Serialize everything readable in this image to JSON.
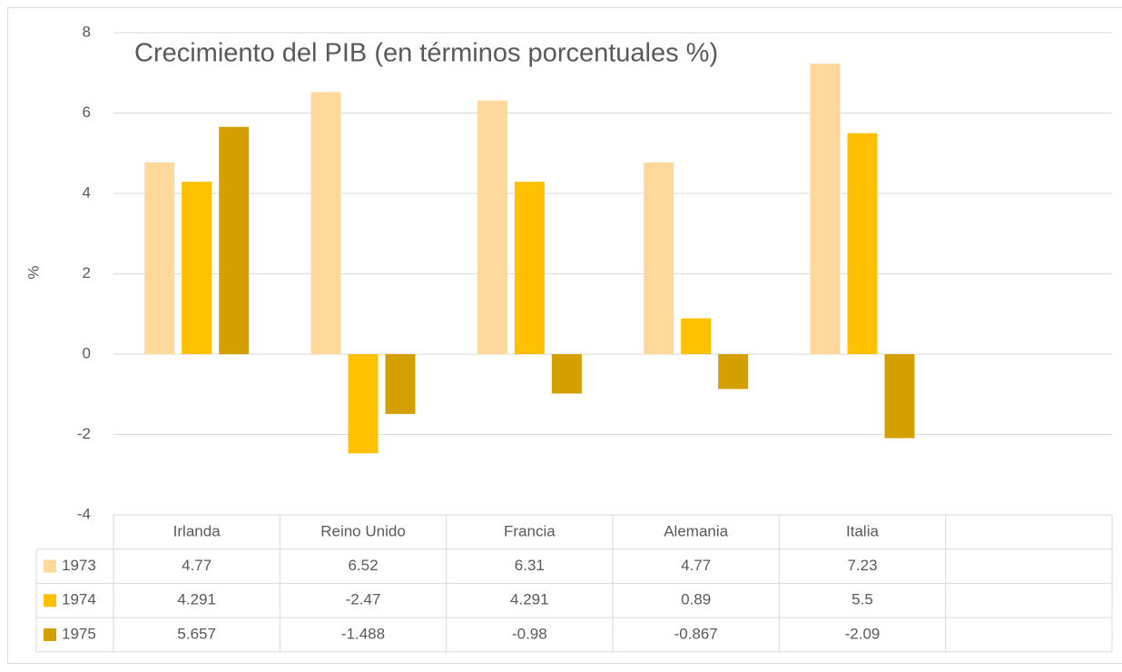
{
  "chart_data": {
    "type": "bar",
    "title": "Crecimiento del PIB (en términos porcentuales %)",
    "y_label": "%",
    "categories": [
      "Irlanda",
      "Reino Unido",
      "Francia",
      "Alemania",
      "Italia",
      null
    ],
    "series": [
      {
        "name": "1973",
        "color": "#ffd99c",
        "values": [
          4.77,
          6.52,
          6.31,
          4.77,
          7.23,
          null
        ]
      },
      {
        "name": "1974",
        "color": "#ffc000",
        "values": [
          4.291,
          -2.47,
          4.291,
          0.89,
          5.5,
          null
        ]
      },
      {
        "name": "1975",
        "color": "#d4a000",
        "values": [
          5.657,
          -1.488,
          -0.98,
          -0.867,
          -2.09,
          null
        ]
      }
    ],
    "ylim": [
      -4,
      8
    ],
    "yticks": [
      -4,
      -2,
      0,
      2,
      4,
      6,
      8
    ],
    "grid": true,
    "data_table": true
  }
}
